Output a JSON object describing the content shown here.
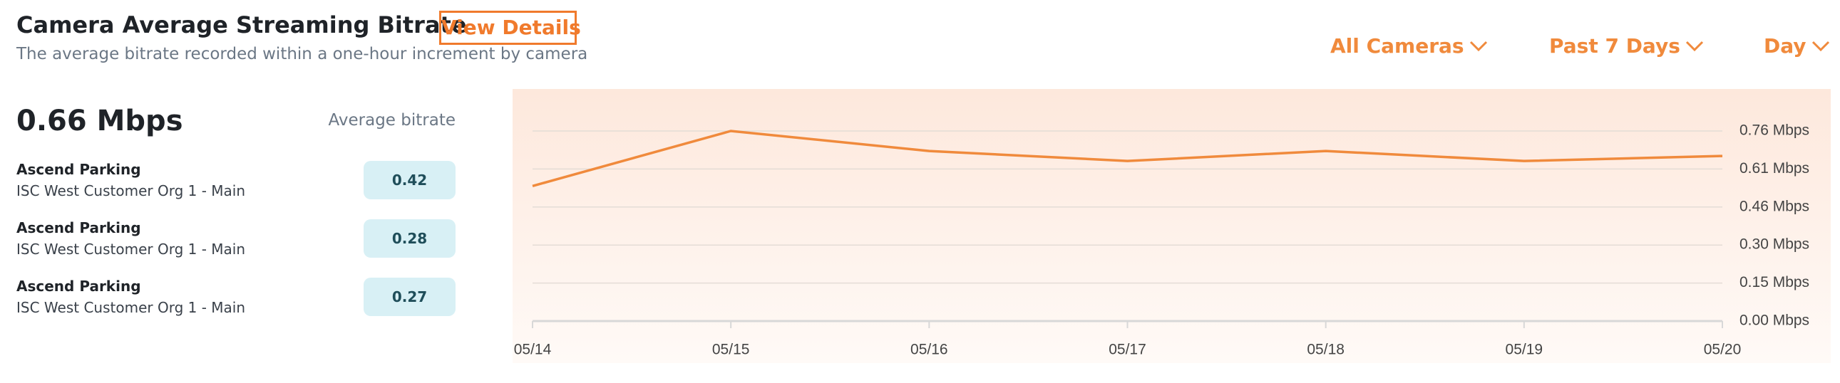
{
  "header": {
    "title": "Camera Average Streaming Bitrate",
    "link": "View Details",
    "subtitle": "The average bitrate recorded within a one-hour increment by camera"
  },
  "filters": [
    "All Cameras",
    "Past 7 Days",
    "Day"
  ],
  "summary": {
    "value": "0.66 Mbps",
    "label": "Average bitrate"
  },
  "cameras": [
    {
      "name": "Ascend Parking",
      "org": "ISC West Customer Org 1 - Main",
      "value": 0.42
    },
    {
      "name": "Ascend Parking",
      "org": "ISC West Customer Org 1 - Main",
      "value": 0.28
    },
    {
      "name": "Ascend Parking",
      "org": "ISC West Customer Org 1 - Main",
      "value": 0.27
    }
  ],
  "chart_data": {
    "type": "line",
    "categories": [
      "05/14",
      "05/15",
      "05/16",
      "05/17",
      "05/18",
      "05/19",
      "05/20"
    ],
    "values": [
      0.54,
      0.76,
      0.68,
      0.64,
      0.68,
      0.64,
      0.66
    ],
    "color": "#f08a3c",
    "ylim": [
      0,
      0.76
    ],
    "yticks": [
      {
        "value": 0,
        "label": "0.00 Mbps"
      },
      {
        "value": 0.152,
        "label": "0.15 Mbps"
      },
      {
        "value": 0.304,
        "label": "0.30 Mbps"
      },
      {
        "value": 0.456,
        "label": "0.46 Mbps"
      },
      {
        "value": 0.608,
        "label": "0.61 Mbps"
      },
      {
        "value": 0.76,
        "label": "0.76 Mbps"
      }
    ],
    "grid": true
  }
}
